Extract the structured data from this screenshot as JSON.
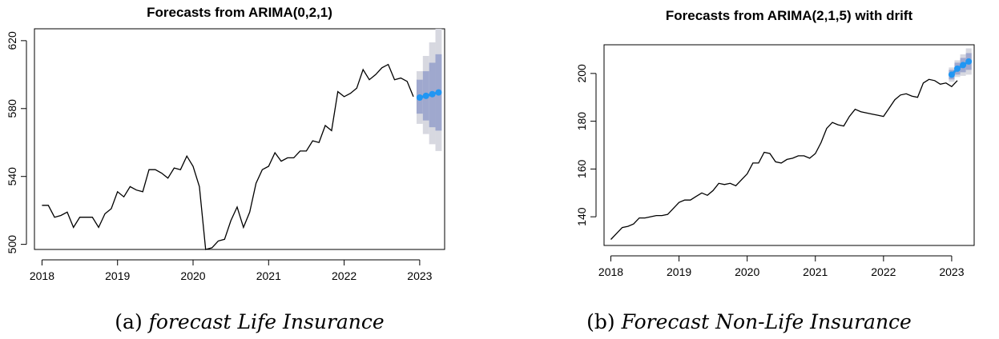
{
  "chart_data": [
    {
      "type": "line",
      "title": "Forecasts from ARIMA(0,2,1)",
      "caption_tag": "(a)",
      "caption_text": "forecast Life Insurance",
      "xlim": [
        2017.9,
        2023.33
      ],
      "ylim": [
        497,
        627
      ],
      "xticks": [
        2018,
        2019,
        2020,
        2021,
        2022,
        2023
      ],
      "yticks": [
        500,
        540,
        580,
        620
      ],
      "history": {
        "x_start": 2018.0,
        "step": 0.0833333,
        "values": [
          523,
          523,
          516,
          517,
          519,
          510,
          516,
          516,
          516,
          510,
          518,
          521,
          531,
          528,
          534,
          532,
          531,
          544,
          544,
          542,
          539,
          545,
          544,
          552,
          546,
          534,
          497,
          498,
          502,
          503,
          514,
          522,
          510,
          519,
          536,
          544,
          546,
          554,
          549,
          551,
          551,
          555,
          555,
          561,
          560,
          570,
          567,
          590,
          587,
          589,
          592,
          603,
          597,
          600,
          604,
          606,
          597,
          598,
          596,
          587
        ]
      },
      "forecast": {
        "x": [
          2023.0,
          2023.0833,
          2023.1667,
          2023.25
        ],
        "point": [
          586.5,
          587.5,
          588.5,
          589.5
        ],
        "lo80": [
          577,
          573,
          569,
          567
        ],
        "hi80": [
          597,
          602,
          607,
          612
        ],
        "lo95": [
          571,
          565,
          559,
          555
        ],
        "hi95": [
          602,
          611,
          619,
          627
        ]
      },
      "colors": {
        "line": "#000000",
        "point": "#2196F3",
        "band80": "#9FA8CE",
        "band95": "#D7D8E0"
      }
    },
    {
      "type": "line",
      "title": "Forecasts from ARIMA(2,1,5) with drift",
      "caption_tag": "(b)",
      "caption_text": "Forecast Non-Life Insurance",
      "xlim": [
        2017.9,
        2023.33
      ],
      "ylim": [
        128,
        212
      ],
      "xticks": [
        2018,
        2019,
        2020,
        2021,
        2022,
        2023
      ],
      "yticks": [
        140,
        160,
        180,
        200
      ],
      "history": {
        "x_start": 2018.0,
        "step": 0.0833333,
        "values": [
          130.5,
          133,
          135.5,
          136,
          137,
          139.5,
          139.5,
          140,
          140.5,
          140.5,
          141,
          143.5,
          146,
          147,
          147,
          148.5,
          150,
          149,
          151,
          154,
          153.5,
          154,
          153,
          155.5,
          158,
          162.5,
          162.5,
          167,
          166.5,
          163,
          162.5,
          164,
          164.5,
          165.5,
          165.5,
          164.5,
          166.5,
          171,
          177,
          179.5,
          178.5,
          178,
          182,
          185,
          184,
          183.5,
          183,
          182.5,
          182,
          185.5,
          189,
          191,
          191.5,
          190.5,
          190,
          196,
          197.5,
          197,
          195.5,
          196,
          194.5,
          197
        ]
      },
      "forecast": {
        "x": [
          2023.0,
          2023.0833,
          2023.1667,
          2023.25
        ],
        "point": [
          199.5,
          202,
          203.5,
          205
        ],
        "lo80": [
          197.5,
          199.5,
          200.5,
          201.5
        ],
        "hi80": [
          201.5,
          204.5,
          206.5,
          208.5
        ],
        "lo95": [
          196.5,
          198.5,
          199,
          199.5
        ],
        "hi95": [
          202.5,
          205.5,
          208,
          210.5
        ]
      },
      "colors": {
        "line": "#000000",
        "point": "#2196F3",
        "band80": "#9FA8CE",
        "band95": "#D7D8E0"
      }
    }
  ]
}
